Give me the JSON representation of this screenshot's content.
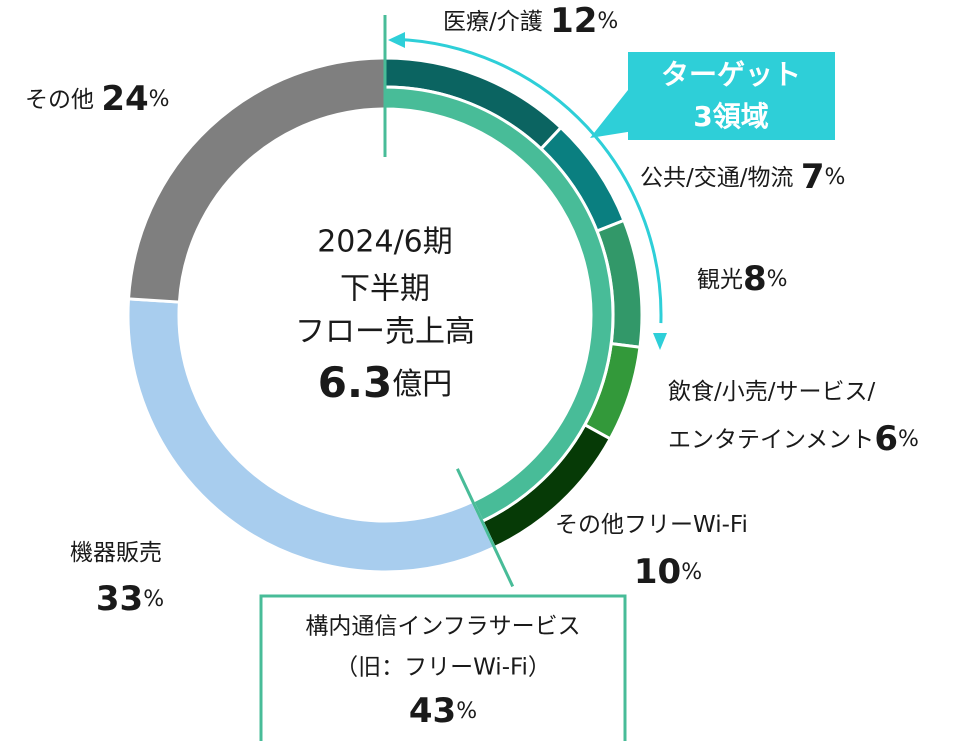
{
  "chart_data": {
    "type": "donut",
    "categories": [
      "医療/介護",
      "公共/交通/物流",
      "観光",
      [
        "飲食/小売/サービス/",
        "エンタテインメント"
      ],
      "その他フリーWi-Fi",
      "機器販売",
      "その他"
    ],
    "values": [
      12,
      7,
      8,
      6,
      10,
      33,
      24
    ],
    "colors": [
      "#0b6461",
      "#0a7f80",
      "#329869",
      "#33993a",
      "#063a06",
      "#a8cdee",
      "#7f7f7f"
    ],
    "unit": "%",
    "inner": {
      "name": [
        "構内通信インフラサービス",
        "（旧：フリーWi-Fi）"
      ],
      "value": 43,
      "color": "#48bc98"
    },
    "center_text": [
      "2024/6期",
      "下半期",
      "フロー売上高"
    ],
    "total": 6.3,
    "total_unit": "億円",
    "callout": [
      "ターゲット",
      "3領域"
    ]
  }
}
